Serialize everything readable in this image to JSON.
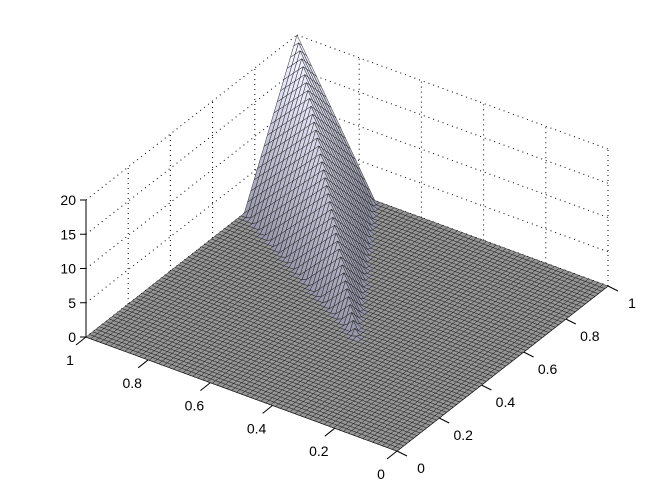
{
  "chart_data": {
    "type": "surface",
    "title": "",
    "xlabel": "",
    "ylabel": "",
    "zlabel": "",
    "x_axis": {
      "range": [
        0,
        1
      ],
      "ticks": [
        "0",
        "0.2",
        "0.4",
        "0.6",
        "0.8",
        "1"
      ]
    },
    "y_axis": {
      "range": [
        0,
        1
      ],
      "ticks": [
        "0",
        "0.2",
        "0.4",
        "0.6",
        "0.8",
        "1"
      ]
    },
    "z_axis": {
      "range": [
        0,
        20
      ],
      "ticks": [
        "0",
        "5",
        "10",
        "15",
        "20"
      ]
    },
    "grid": true,
    "surface": {
      "description_values": {
        "peak_z": 20,
        "peak_at": [
          1,
          1
        ],
        "ridge_along": "x = y",
        "ridge_reaches_zero_at": 0.4,
        "base_width_at_edge": 0.25,
        "floor_z": 0
      },
      "colormap": "gray",
      "edge_color": "#000000"
    }
  }
}
